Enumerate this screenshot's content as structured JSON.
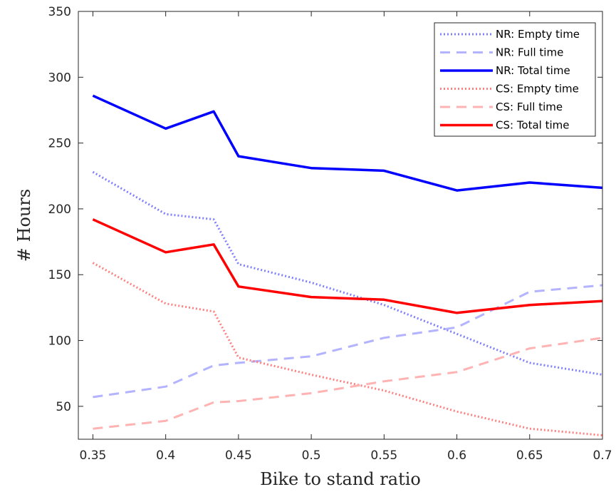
{
  "chart_data": {
    "type": "line",
    "title": "",
    "xlabel": "Bike to stand ratio",
    "ylabel": "# Hours",
    "xlim": [
      0.34,
      0.7
    ],
    "ylim": [
      25,
      350
    ],
    "x_ticks": [
      0.35,
      0.4,
      0.45,
      0.5,
      0.55,
      0.6,
      0.65,
      0.7
    ],
    "x_tick_labels": [
      "0.35",
      "0.4",
      "0.45",
      "0.5",
      "0.55",
      "0.6",
      "0.65",
      "0.7"
    ],
    "y_ticks": [
      50,
      100,
      150,
      200,
      250,
      300,
      350
    ],
    "y_tick_labels": [
      "50",
      "100",
      "150",
      "200",
      "250",
      "300",
      "350"
    ],
    "x": [
      0.35,
      0.4,
      0.433,
      0.45,
      0.5,
      0.55,
      0.6,
      0.65,
      0.7
    ],
    "legend_position": "top-right",
    "grid": false,
    "series": [
      {
        "name": "NR: Empty time",
        "color": "#8080ff",
        "style": "dotted",
        "width": 3,
        "values": [
          228,
          196,
          192,
          158,
          144,
          127,
          105,
          83,
          74
        ]
      },
      {
        "name": "NR: Full time",
        "color": "#b3b3ff",
        "style": "dashed",
        "width": 3,
        "values": [
          57,
          65,
          81,
          83,
          88,
          102,
          110,
          137,
          142
        ]
      },
      {
        "name": "NR: Total time",
        "color": "#0000ff",
        "style": "solid",
        "width": 3.5,
        "values": [
          286,
          261,
          274,
          240,
          231,
          229,
          214,
          220,
          216
        ]
      },
      {
        "name": "CS: Empty time",
        "color": "#ff8080",
        "style": "dotted",
        "width": 3,
        "values": [
          159,
          128,
          122,
          87,
          74,
          62,
          46,
          33,
          28
        ]
      },
      {
        "name": "CS: Full time",
        "color": "#ffb3b3",
        "style": "dashed",
        "width": 3,
        "values": [
          33,
          39,
          53,
          54,
          60,
          69,
          76,
          94,
          102
        ]
      },
      {
        "name": "CS: Total time",
        "color": "#ff0000",
        "style": "solid",
        "width": 3.5,
        "values": [
          192,
          167,
          173,
          141,
          133,
          131,
          121,
          127,
          130
        ]
      }
    ]
  }
}
